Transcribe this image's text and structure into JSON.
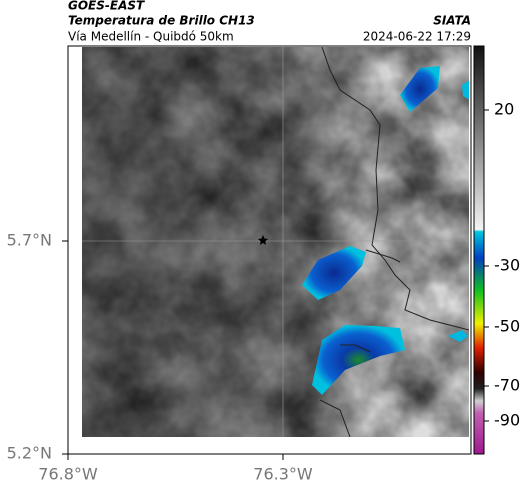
{
  "header": {
    "source": "GOES-EAST",
    "title": "Temperatura de Brillo CH13",
    "subtitle": "Vía Medellín - Quibdó 50km",
    "org": "SIATA",
    "timestamp": "2024-06-22 17:29"
  },
  "map": {
    "lat_ticks": [
      "5.7°N",
      "5.2°N"
    ],
    "lon_ticks": [
      "76.8°W",
      "76.3°W"
    ]
  },
  "colorbar": {
    "ticks": [
      20,
      -30,
      -50,
      -70,
      -90
    ]
  }
}
